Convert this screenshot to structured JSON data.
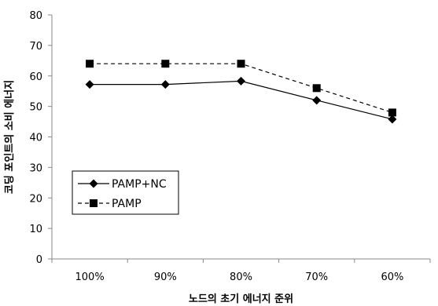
{
  "chart_data": {
    "type": "line",
    "categories": [
      "100%",
      "90%",
      "80%",
      "70%",
      "60%"
    ],
    "series": [
      {
        "name": "PAMP+NC",
        "values": [
          57.2,
          57.2,
          58.3,
          52.0,
          45.8
        ],
        "marker": "diamond",
        "line_style": "solid",
        "color": "#000000"
      },
      {
        "name": "PAMP",
        "values": [
          64.0,
          64.0,
          64.0,
          56.0,
          48.0
        ],
        "marker": "square",
        "line_style": "dashed",
        "color": "#000000"
      }
    ],
    "xlabel": "노드의 초기 에너지 준위",
    "ylabel": "코딩 포인트의 소비 에너지",
    "ylim": [
      0,
      80
    ],
    "yticks": [
      0,
      10,
      20,
      30,
      40,
      50,
      60,
      70,
      80
    ],
    "grid": false,
    "legend_position": "lower-left"
  }
}
